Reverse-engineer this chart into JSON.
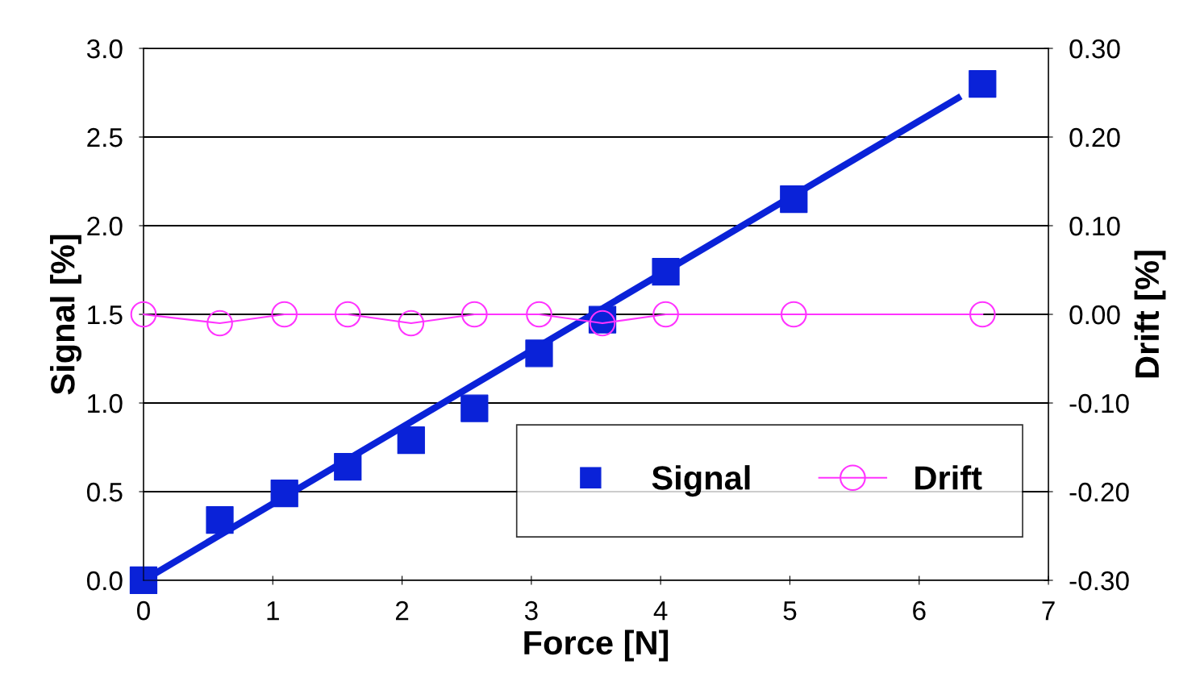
{
  "chart_data": {
    "type": "line",
    "xlabel": "Force [N]",
    "ylabel": "Signal [%]",
    "y2label": "Drift [%]",
    "xlim": [
      0,
      7
    ],
    "xticks": [
      0,
      1,
      2,
      3,
      4,
      5,
      6,
      7
    ],
    "ylim": [
      0,
      3
    ],
    "yticks": [
      {
        "value": 0,
        "label": "0.0"
      },
      0.5,
      {
        "value": 1,
        "label": "1.0"
      },
      1.5,
      {
        "value": 2,
        "label": "2.0"
      },
      2.5,
      {
        "value": 3,
        "label": "3.0"
      }
    ],
    "y2lim": [
      -0.3,
      0.3
    ],
    "y2ticks": [
      {
        "value": -0.3,
        "label": "-0.30"
      },
      {
        "value": -0.2,
        "label": "-0.20"
      },
      {
        "value": -0.1,
        "label": "-0.10"
      },
      {
        "value": 0,
        "label": "0.00"
      },
      {
        "value": 0.1,
        "label": "0.10"
      },
      {
        "value": 0.2,
        "label": "0.20"
      },
      {
        "value": 0.3,
        "label": "0.30"
      }
    ],
    "grid": "y",
    "legend": "bottom right",
    "series": [
      {
        "color": "#0a22d8",
        "x": [
          0,
          6.3
        ],
        "values": [
          0,
          2.72
        ],
        "marker": "none"
      },
      {
        "type": "scatter",
        "name": "Signal",
        "color": "#0a22d8",
        "marker": "square",
        "x": [
          0,
          0.59,
          1.09,
          1.58,
          2.07,
          2.56,
          3.06,
          3.55,
          4.04,
          5.03,
          6.49
        ],
        "values": [
          0,
          0.34,
          0.49,
          0.64,
          0.79,
          0.97,
          1.28,
          1.47,
          1.74,
          2.15,
          2.8
        ]
      },
      {
        "name": "Drift",
        "color": "#ff33ff",
        "marker": "circle",
        "axis": "y2",
        "x": [
          0,
          0.59,
          1.09,
          1.58,
          2.07,
          2.56,
          3.06,
          3.55,
          4.04,
          5.03,
          6.49
        ],
        "values": [
          0,
          -0.01,
          0,
          0,
          -0.01,
          0,
          0,
          -0.01,
          0,
          0,
          0
        ]
      }
    ]
  }
}
